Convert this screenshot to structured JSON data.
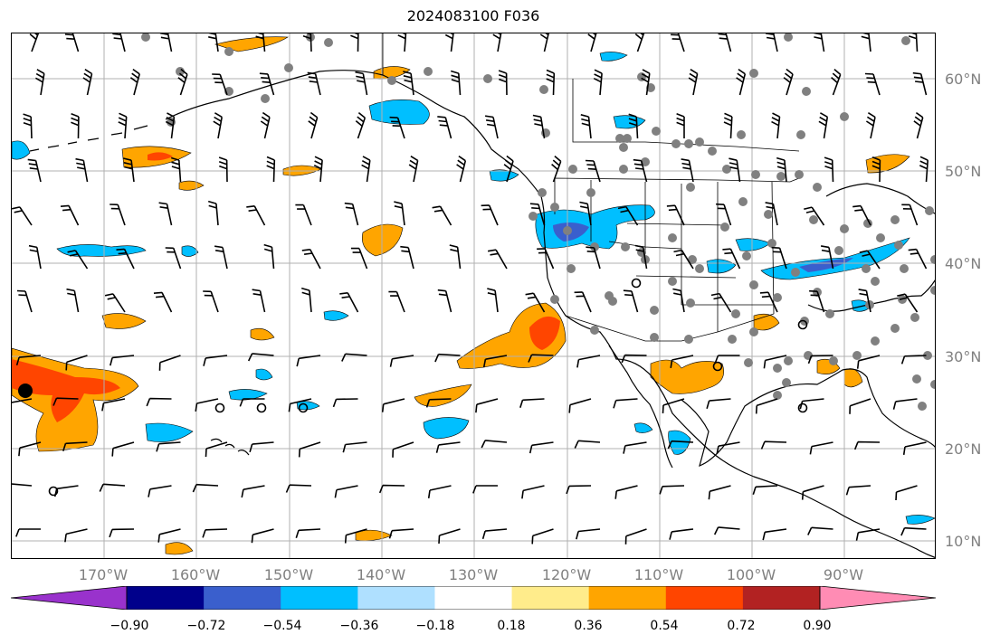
{
  "title": "2024083100 F036",
  "lat_labels": [
    "60°N",
    "50°N",
    "40°N",
    "30°N",
    "20°N",
    "10°N"
  ],
  "lon_labels": [
    "170°W",
    "160°W",
    "150°W",
    "140°W",
    "130°W",
    "120°W",
    "110°W",
    "100°W",
    "90°W"
  ],
  "colorbar": {
    "ticks": [
      "−0.90",
      "−0.72",
      "−0.54",
      "−0.36",
      "−0.18",
      "0.18",
      "0.36",
      "0.54",
      "0.72",
      "0.90"
    ],
    "colors": [
      "#9932cc",
      "#00008b",
      "#3a5fcd",
      "#00bfff",
      "#afe0ff",
      "#ffffff",
      "#ffec8b",
      "#ffa500",
      "#ff4500",
      "#b22222",
      "#ff8cb4"
    ]
  },
  "map_colors": {
    "grid": "#b0b0b0",
    "station": "#808080",
    "coast": "#000000"
  }
}
